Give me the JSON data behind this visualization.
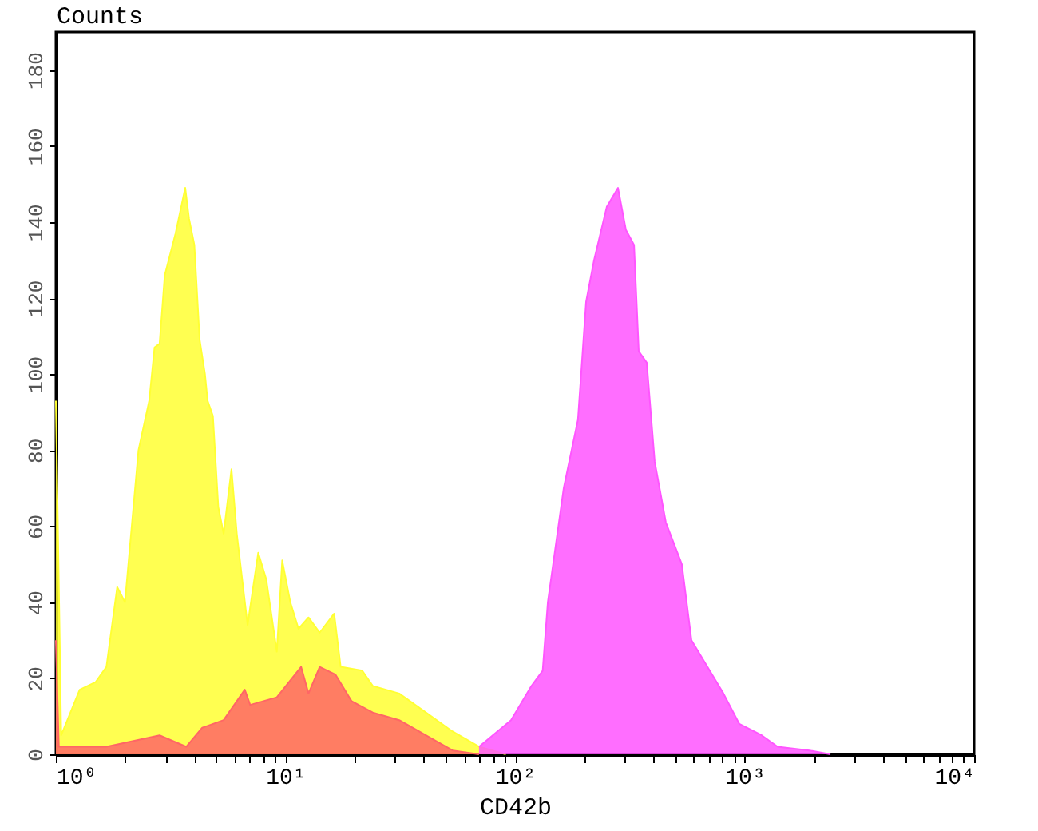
{
  "chart_data": {
    "type": "area",
    "xlabel": "CD42b",
    "ylabel": "Counts",
    "log": "x",
    "marker": "none",
    "grid": false,
    "xlim": [
      1,
      10000
    ],
    "ylim": [
      0,
      190
    ],
    "xticks": [
      {
        "value": 1,
        "label": "10⁰"
      },
      {
        "value": 2,
        "label": null
      },
      {
        "value": 3,
        "label": null
      },
      {
        "value": 4,
        "label": null
      },
      {
        "value": 5,
        "label": null
      },
      {
        "value": 6,
        "label": null
      },
      {
        "value": 7,
        "label": null
      },
      {
        "value": 8,
        "label": null
      },
      {
        "value": 9,
        "label": null
      },
      {
        "value": 10,
        "label": "10¹"
      },
      {
        "value": 20,
        "label": null
      },
      {
        "value": 30,
        "label": null
      },
      {
        "value": 40,
        "label": null
      },
      {
        "value": 50,
        "label": null
      },
      {
        "value": 60,
        "label": null
      },
      {
        "value": 70,
        "label": null
      },
      {
        "value": 80,
        "label": null
      },
      {
        "value": 90,
        "label": null
      },
      {
        "value": 100,
        "label": "10²"
      },
      {
        "value": 200,
        "label": null
      },
      {
        "value": 300,
        "label": null
      },
      {
        "value": 400,
        "label": null
      },
      {
        "value": 500,
        "label": null
      },
      {
        "value": 600,
        "label": null
      },
      {
        "value": 700,
        "label": null
      },
      {
        "value": 800,
        "label": null
      },
      {
        "value": 900,
        "label": null
      },
      {
        "value": 1000,
        "label": "10³"
      },
      {
        "value": 2000,
        "label": null
      },
      {
        "value": 3000,
        "label": null
      },
      {
        "value": 4000,
        "label": null
      },
      {
        "value": 5000,
        "label": null
      },
      {
        "value": 6000,
        "label": null
      },
      {
        "value": 7000,
        "label": null
      },
      {
        "value": 8000,
        "label": null
      },
      {
        "value": 9000,
        "label": null
      },
      {
        "value": 10000,
        "label": "10⁴"
      }
    ],
    "yticks": [
      0,
      20,
      40,
      60,
      80,
      100,
      120,
      140,
      160,
      180
    ],
    "series": [
      {
        "color": "#ffff33",
        "x": [
          1,
          1.055,
          1.27,
          1.49,
          1.66,
          1.85,
          2.0,
          2.29,
          2.55,
          2.69,
          2.83,
          2.98,
          3.32,
          3.66,
          3.8,
          4.01,
          4.23,
          4.46,
          4.58,
          4.83,
          5.1,
          5.38,
          5.82,
          6.14,
          6.84,
          7.61,
          8.25,
          9.17,
          9.68,
          10.5,
          11.4,
          12.6,
          14.1,
          16.3,
          17.4,
          21.6,
          24.0,
          31.3,
          40.9,
          53.5,
          69.7,
          91.2
        ],
        "values": [
          93,
          5,
          17,
          19,
          23,
          44,
          40,
          80,
          93,
          107,
          108,
          126,
          137,
          149,
          141,
          134,
          109,
          100,
          93,
          89,
          65,
          58,
          75,
          58,
          34,
          53,
          46,
          27,
          51,
          40,
          33,
          36,
          32,
          37,
          23,
          22,
          18,
          16,
          11,
          6,
          2,
          0
        ]
      },
      {
        "color": "#ff6666",
        "x": [
          1,
          1.03,
          1.66,
          2.83,
          3.7,
          4.34,
          5.38,
          6.65,
          7.02,
          9.17,
          11.7,
          12.6,
          14.1,
          16.5,
          19.4,
          24.0,
          31.3,
          40.9,
          53.5,
          69.7
        ],
        "values": [
          30,
          2,
          2,
          5,
          2,
          7,
          9,
          17,
          13,
          15,
          23,
          16,
          23,
          21,
          14,
          11,
          9,
          5,
          1,
          0
        ]
      },
      {
        "color": "#ff55ff",
        "x": [
          69.7,
          96.1,
          118,
          132,
          139,
          163,
          188,
          204,
          221,
          251,
          281,
          304,
          330,
          346,
          375,
          406,
          454,
          533,
          587,
          689,
          809,
          949,
          1188,
          1394,
          1919,
          2366
        ],
        "values": [
          2,
          9,
          18,
          22,
          40,
          70,
          88,
          119,
          130,
          144,
          149,
          138,
          134,
          106,
          103,
          77,
          61,
          50,
          30,
          23,
          16,
          8,
          5,
          2,
          1,
          0
        ]
      }
    ]
  }
}
